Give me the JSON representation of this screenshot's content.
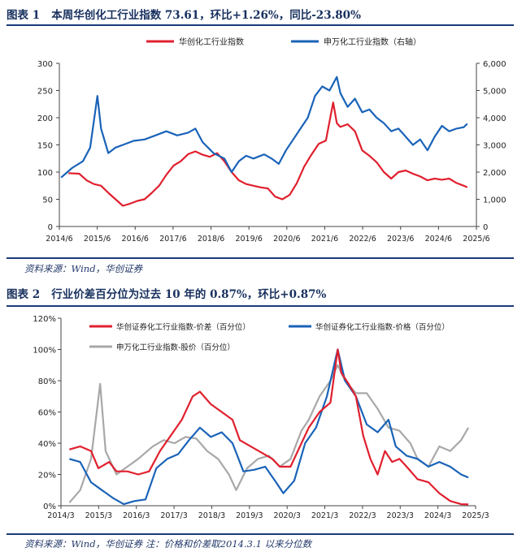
{
  "figures": [
    {
      "label": "图表 1",
      "title": "本周华创化工行业指数 73.61，环比+1.26%，同比-23.80%",
      "source": "资料来源：Wind，华创证券"
    },
    {
      "label": "图表 2",
      "title": "行业价差百分位为过去 10 年的 0.87%，环比+0.87%",
      "source": "资料来源：Wind，华创证券    注：价格和价差取2014.3.1 以来分位数"
    }
  ],
  "chart_data": [
    {
      "type": "line",
      "x_ticks": [
        "2014/6",
        "2015/6",
        "2016/6",
        "2017/6",
        "2018/6",
        "2019/6",
        "2020/6",
        "2021/6",
        "2022/6",
        "2023/6",
        "2024/6",
        "2025/6"
      ],
      "y_left": {
        "ticks": [
          0,
          50,
          100,
          150,
          200,
          250,
          300
        ],
        "lim": [
          0,
          300
        ]
      },
      "y_right": {
        "ticks": [
          "0",
          "1,000",
          "2,000",
          "3,000",
          "4,000",
          "5,000",
          "6,000"
        ],
        "lim": [
          0,
          6000
        ]
      },
      "grid": false,
      "legend_position": "top",
      "series": [
        {
          "name": "华创化工行业指数",
          "axis": "left",
          "color": "#e0202e",
          "points": [
            [
              2014.5,
              98
            ],
            [
              2014.8,
              97
            ],
            [
              2015.0,
              85
            ],
            [
              2015.2,
              78
            ],
            [
              2015.4,
              75
            ],
            [
              2015.6,
              62
            ],
            [
              2015.8,
              50
            ],
            [
              2016.0,
              38
            ],
            [
              2016.2,
              42
            ],
            [
              2016.4,
              47
            ],
            [
              2016.6,
              50
            ],
            [
              2016.8,
              62
            ],
            [
              2017.0,
              75
            ],
            [
              2017.2,
              95
            ],
            [
              2017.4,
              112
            ],
            [
              2017.6,
              120
            ],
            [
              2017.8,
              133
            ],
            [
              2018.0,
              138
            ],
            [
              2018.2,
              132
            ],
            [
              2018.4,
              128
            ],
            [
              2018.6,
              135
            ],
            [
              2018.8,
              120
            ],
            [
              2019.0,
              100
            ],
            [
              2019.2,
              85
            ],
            [
              2019.4,
              78
            ],
            [
              2019.6,
              75
            ],
            [
              2019.8,
              72
            ],
            [
              2020.0,
              70
            ],
            [
              2020.2,
              55
            ],
            [
              2020.4,
              50
            ],
            [
              2020.6,
              58
            ],
            [
              2020.8,
              80
            ],
            [
              2021.0,
              110
            ],
            [
              2021.2,
              132
            ],
            [
              2021.4,
              152
            ],
            [
              2021.6,
              158
            ],
            [
              2021.8,
              228
            ],
            [
              2021.9,
              190
            ],
            [
              2022.0,
              183
            ],
            [
              2022.2,
              188
            ],
            [
              2022.4,
              175
            ],
            [
              2022.6,
              140
            ],
            [
              2022.8,
              130
            ],
            [
              2023.0,
              118
            ],
            [
              2023.2,
              100
            ],
            [
              2023.4,
              88
            ],
            [
              2023.6,
              100
            ],
            [
              2023.8,
              103
            ],
            [
              2024.0,
              97
            ],
            [
              2024.2,
              92
            ],
            [
              2024.4,
              85
            ],
            [
              2024.6,
              88
            ],
            [
              2024.8,
              86
            ],
            [
              2025.0,
              88
            ],
            [
              2025.2,
              80
            ],
            [
              2025.4,
              75
            ],
            [
              2025.5,
              72
            ]
          ]
        },
        {
          "name": "申万化工行业指数（右轴）",
          "axis": "right",
          "color": "#1a63b8",
          "points": [
            [
              2014.3,
              1800
            ],
            [
              2014.6,
              2150
            ],
            [
              2014.9,
              2400
            ],
            [
              2015.1,
              2900
            ],
            [
              2015.3,
              4800
            ],
            [
              2015.4,
              3600
            ],
            [
              2015.6,
              2700
            ],
            [
              2015.8,
              2900
            ],
            [
              2016.0,
              3000
            ],
            [
              2016.3,
              3150
            ],
            [
              2016.6,
              3200
            ],
            [
              2016.9,
              3350
            ],
            [
              2017.2,
              3500
            ],
            [
              2017.5,
              3350
            ],
            [
              2017.8,
              3450
            ],
            [
              2018.0,
              3600
            ],
            [
              2018.2,
              3100
            ],
            [
              2018.5,
              2700
            ],
            [
              2018.8,
              2500
            ],
            [
              2019.0,
              2000
            ],
            [
              2019.2,
              2400
            ],
            [
              2019.4,
              2600
            ],
            [
              2019.6,
              2500
            ],
            [
              2019.9,
              2650
            ],
            [
              2020.1,
              2500
            ],
            [
              2020.3,
              2300
            ],
            [
              2020.5,
              2800
            ],
            [
              2020.7,
              3200
            ],
            [
              2020.9,
              3600
            ],
            [
              2021.1,
              4000
            ],
            [
              2021.3,
              4800
            ],
            [
              2021.5,
              5150
            ],
            [
              2021.7,
              5000
            ],
            [
              2021.9,
              5500
            ],
            [
              2022.0,
              4900
            ],
            [
              2022.2,
              4400
            ],
            [
              2022.4,
              4700
            ],
            [
              2022.6,
              4200
            ],
            [
              2022.8,
              4300
            ],
            [
              2023.0,
              4000
            ],
            [
              2023.2,
              3800
            ],
            [
              2023.4,
              3500
            ],
            [
              2023.6,
              3600
            ],
            [
              2023.8,
              3300
            ],
            [
              2024.0,
              3000
            ],
            [
              2024.2,
              3200
            ],
            [
              2024.4,
              2800
            ],
            [
              2024.6,
              3300
            ],
            [
              2024.8,
              3700
            ],
            [
              2025.0,
              3500
            ],
            [
              2025.2,
              3600
            ],
            [
              2025.4,
              3650
            ],
            [
              2025.5,
              3780
            ]
          ]
        }
      ]
    },
    {
      "type": "line",
      "x_ticks": [
        "2014/3",
        "2015/3",
        "2016/3",
        "2017/3",
        "2018/3",
        "2019/3",
        "2020/3",
        "2021/3",
        "2022/3",
        "2023/3",
        "2024/3",
        "2025/3"
      ],
      "y_ticks": [
        "0%",
        "20%",
        "40%",
        "60%",
        "80%",
        "100%",
        "120%"
      ],
      "ylim": [
        0,
        120
      ],
      "grid": false,
      "legend_position": "top",
      "series": [
        {
          "name": "华创证券化工行业指数-价差（百分位）",
          "color": "#e0202e",
          "points": [
            [
              2014.4,
              36
            ],
            [
              2014.7,
              38
            ],
            [
              2015.0,
              35
            ],
            [
              2015.2,
              24
            ],
            [
              2015.5,
              28
            ],
            [
              2015.7,
              22
            ],
            [
              2016.0,
              22
            ],
            [
              2016.3,
              20
            ],
            [
              2016.6,
              22
            ],
            [
              2016.9,
              35
            ],
            [
              2017.2,
              45
            ],
            [
              2017.5,
              55
            ],
            [
              2017.8,
              70
            ],
            [
              2018.0,
              73
            ],
            [
              2018.3,
              65
            ],
            [
              2018.6,
              60
            ],
            [
              2018.9,
              55
            ],
            [
              2019.1,
              42
            ],
            [
              2019.4,
              38
            ],
            [
              2019.7,
              34
            ],
            [
              2020.0,
              30
            ],
            [
              2020.2,
              25
            ],
            [
              2020.5,
              25
            ],
            [
              2020.8,
              40
            ],
            [
              2021.0,
              50
            ],
            [
              2021.3,
              60
            ],
            [
              2021.6,
              66
            ],
            [
              2021.8,
              100
            ],
            [
              2021.9,
              85
            ],
            [
              2022.1,
              78
            ],
            [
              2022.3,
              70
            ],
            [
              2022.5,
              45
            ],
            [
              2022.7,
              30
            ],
            [
              2022.9,
              20
            ],
            [
              2023.1,
              35
            ],
            [
              2023.3,
              28
            ],
            [
              2023.5,
              30
            ],
            [
              2023.7,
              25
            ],
            [
              2024.0,
              17
            ],
            [
              2024.3,
              15
            ],
            [
              2024.6,
              8
            ],
            [
              2024.9,
              3
            ],
            [
              2025.2,
              1
            ],
            [
              2025.4,
              0.9
            ]
          ]
        },
        {
          "name": "华创证券化工行业指数-价格（百分位）",
          "color": "#1a63b8",
          "points": [
            [
              2014.4,
              30
            ],
            [
              2014.7,
              28
            ],
            [
              2015.0,
              15
            ],
            [
              2015.3,
              10
            ],
            [
              2015.6,
              5
            ],
            [
              2015.9,
              1
            ],
            [
              2016.2,
              3
            ],
            [
              2016.5,
              4
            ],
            [
              2016.8,
              24
            ],
            [
              2017.1,
              30
            ],
            [
              2017.4,
              33
            ],
            [
              2017.7,
              42
            ],
            [
              2018.0,
              50
            ],
            [
              2018.3,
              44
            ],
            [
              2018.6,
              47
            ],
            [
              2018.9,
              40
            ],
            [
              2019.2,
              22
            ],
            [
              2019.5,
              23
            ],
            [
              2019.8,
              25
            ],
            [
              2020.1,
              15
            ],
            [
              2020.3,
              8
            ],
            [
              2020.6,
              16
            ],
            [
              2020.9,
              40
            ],
            [
              2021.2,
              50
            ],
            [
              2021.5,
              70
            ],
            [
              2021.8,
              100
            ],
            [
              2022.0,
              80
            ],
            [
              2022.3,
              70
            ],
            [
              2022.6,
              52
            ],
            [
              2022.9,
              47
            ],
            [
              2023.2,
              55
            ],
            [
              2023.4,
              38
            ],
            [
              2023.7,
              32
            ],
            [
              2024.0,
              30
            ],
            [
              2024.3,
              25
            ],
            [
              2024.6,
              28
            ],
            [
              2024.9,
              25
            ],
            [
              2025.2,
              20
            ],
            [
              2025.4,
              18
            ]
          ]
        },
        {
          "name": "申万化工行业指数-股价（百分位）",
          "color": "#a8a8a8",
          "points": [
            [
              2014.4,
              2
            ],
            [
              2014.7,
              10
            ],
            [
              2015.0,
              30
            ],
            [
              2015.25,
              78
            ],
            [
              2015.4,
              35
            ],
            [
              2015.7,
              20
            ],
            [
              2016.0,
              25
            ],
            [
              2016.3,
              30
            ],
            [
              2016.7,
              38
            ],
            [
              2017.0,
              42
            ],
            [
              2017.3,
              40
            ],
            [
              2017.6,
              44
            ],
            [
              2017.9,
              43
            ],
            [
              2018.2,
              35
            ],
            [
              2018.5,
              30
            ],
            [
              2018.8,
              20
            ],
            [
              2019.0,
              10
            ],
            [
              2019.3,
              24
            ],
            [
              2019.6,
              30
            ],
            [
              2019.9,
              32
            ],
            [
              2020.2,
              25
            ],
            [
              2020.5,
              30
            ],
            [
              2020.8,
              48
            ],
            [
              2021.0,
              55
            ],
            [
              2021.3,
              70
            ],
            [
              2021.6,
              80
            ],
            [
              2021.8,
              90
            ],
            [
              2022.0,
              80
            ],
            [
              2022.3,
              72
            ],
            [
              2022.6,
              72
            ],
            [
              2022.9,
              62
            ],
            [
              2023.2,
              50
            ],
            [
              2023.5,
              48
            ],
            [
              2023.8,
              40
            ],
            [
              2024.0,
              30
            ],
            [
              2024.3,
              25
            ],
            [
              2024.6,
              38
            ],
            [
              2024.9,
              35
            ],
            [
              2025.2,
              42
            ],
            [
              2025.4,
              50
            ]
          ]
        }
      ]
    }
  ]
}
